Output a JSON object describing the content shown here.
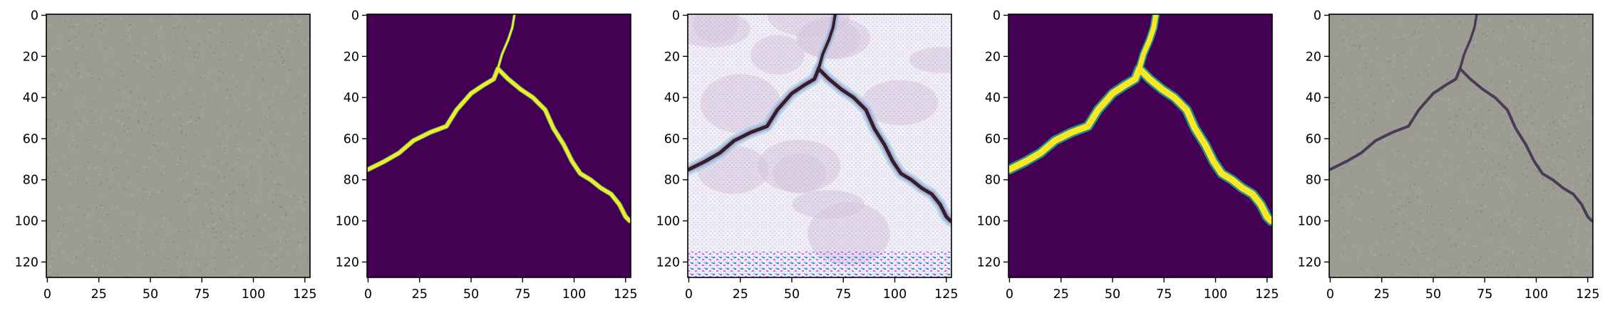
{
  "figure": {
    "panel_count": 5,
    "panels": [
      {
        "name": "concrete-photo",
        "content": "photo",
        "colors": {
          "background": "#9c9c93",
          "speckle_light": "#b4b5ad",
          "speckle_dark": "#7f807a"
        },
        "axes": {
          "x_ticks": [
            {
              "value": 0,
              "label": "0"
            },
            {
              "value": 25,
              "label": "25"
            },
            {
              "value": 50,
              "label": "50"
            },
            {
              "value": 75,
              "label": "75"
            },
            {
              "value": 100,
              "label": "100"
            },
            {
              "value": 125,
              "label": "125"
            }
          ],
          "y_ticks": [
            {
              "value": 0,
              "label": "0"
            },
            {
              "value": 20,
              "label": "20"
            },
            {
              "value": 40,
              "label": "40"
            },
            {
              "value": 60,
              "label": "60"
            },
            {
              "value": 80,
              "label": "80"
            },
            {
              "value": 100,
              "label": "100"
            },
            {
              "value": 120,
              "label": "120"
            }
          ]
        }
      },
      {
        "name": "ground-truth-mask",
        "content": "mask",
        "colors": {
          "background": "#440154",
          "crack": "#fde725",
          "edge": "#35b779"
        },
        "axes": {
          "x_ticks": [
            {
              "value": 0,
              "label": "0"
            },
            {
              "value": 25,
              "label": "25"
            },
            {
              "value": 50,
              "label": "50"
            },
            {
              "value": 75,
              "label": "75"
            },
            {
              "value": 100,
              "label": "100"
            },
            {
              "value": 125,
              "label": "125"
            }
          ],
          "y_ticks": [
            {
              "value": 0,
              "label": "0"
            },
            {
              "value": 20,
              "label": "20"
            },
            {
              "value": 40,
              "label": "40"
            },
            {
              "value": 60,
              "label": "60"
            },
            {
              "value": 80,
              "label": "80"
            },
            {
              "value": 100,
              "label": "100"
            },
            {
              "value": 120,
              "label": "120"
            }
          ]
        }
      },
      {
        "name": "feature-map",
        "content": "feature",
        "colors": {
          "background": "#f1eef6",
          "blotch": "#d9c8de",
          "crack": "#2b2326",
          "halo_a": "#7fd0dc",
          "halo_b": "#c08ad3"
        },
        "axes": {
          "x_ticks": [
            {
              "value": 0,
              "label": "0"
            },
            {
              "value": 25,
              "label": "25"
            },
            {
              "value": 50,
              "label": "50"
            },
            {
              "value": 75,
              "label": "75"
            },
            {
              "value": 100,
              "label": "100"
            },
            {
              "value": 125,
              "label": "125"
            }
          ],
          "y_ticks": [
            {
              "value": 0,
              "label": "0"
            },
            {
              "value": 20,
              "label": "20"
            },
            {
              "value": 40,
              "label": "40"
            },
            {
              "value": 60,
              "label": "60"
            },
            {
              "value": 80,
              "label": "80"
            },
            {
              "value": 100,
              "label": "100"
            },
            {
              "value": 120,
              "label": "120"
            }
          ]
        }
      },
      {
        "name": "predicted-mask",
        "content": "prediction",
        "colors": {
          "background": "#440154",
          "crack": "#fde725",
          "edge": "#21918c"
        },
        "axes": {
          "x_ticks": [
            {
              "value": 0,
              "label": "0"
            },
            {
              "value": 25,
              "label": "25"
            },
            {
              "value": 50,
              "label": "50"
            },
            {
              "value": 75,
              "label": "75"
            },
            {
              "value": 100,
              "label": "100"
            },
            {
              "value": 125,
              "label": "125"
            }
          ],
          "y_ticks": [
            {
              "value": 0,
              "label": "0"
            },
            {
              "value": 20,
              "label": "20"
            },
            {
              "value": 40,
              "label": "40"
            },
            {
              "value": 60,
              "label": "60"
            },
            {
              "value": 80,
              "label": "80"
            },
            {
              "value": 100,
              "label": "100"
            },
            {
              "value": 120,
              "label": "120"
            }
          ]
        }
      },
      {
        "name": "overlay",
        "content": "overlay",
        "colors": {
          "background": "#9c9c93",
          "crack": "#3f3350"
        },
        "axes": {
          "x_ticks": [
            {
              "value": 0,
              "label": "0"
            },
            {
              "value": 25,
              "label": "25"
            },
            {
              "value": 50,
              "label": "50"
            },
            {
              "value": 75,
              "label": "75"
            },
            {
              "value": 100,
              "label": "100"
            },
            {
              "value": 125,
              "label": "125"
            }
          ],
          "y_ticks": [
            {
              "value": 0,
              "label": "0"
            },
            {
              "value": 20,
              "label": "20"
            },
            {
              "value": 40,
              "label": "40"
            },
            {
              "value": 60,
              "label": "60"
            },
            {
              "value": 80,
              "label": "80"
            },
            {
              "value": 100,
              "label": "100"
            },
            {
              "value": 120,
              "label": "120"
            }
          ]
        }
      }
    ],
    "crack_paths": {
      "main": [
        [
          0,
          75
        ],
        [
          8,
          71
        ],
        [
          15,
          67
        ],
        [
          22,
          61
        ],
        [
          30,
          57
        ],
        [
          38,
          54
        ],
        [
          43,
          46
        ],
        [
          50,
          38
        ],
        [
          56,
          34
        ],
        [
          61,
          31
        ],
        [
          63,
          26
        ],
        [
          68,
          31
        ],
        [
          74,
          36
        ],
        [
          80,
          40
        ],
        [
          86,
          46
        ],
        [
          90,
          55
        ],
        [
          95,
          63
        ],
        [
          99,
          71
        ],
        [
          103,
          77
        ],
        [
          108,
          80
        ],
        [
          113,
          84
        ],
        [
          118,
          87
        ],
        [
          122,
          92
        ],
        [
          125,
          98
        ],
        [
          127,
          100
        ]
      ],
      "branch": [
        [
          63,
          26
        ],
        [
          65,
          19
        ],
        [
          68,
          12
        ],
        [
          70,
          6
        ],
        [
          71,
          0
        ]
      ]
    }
  }
}
